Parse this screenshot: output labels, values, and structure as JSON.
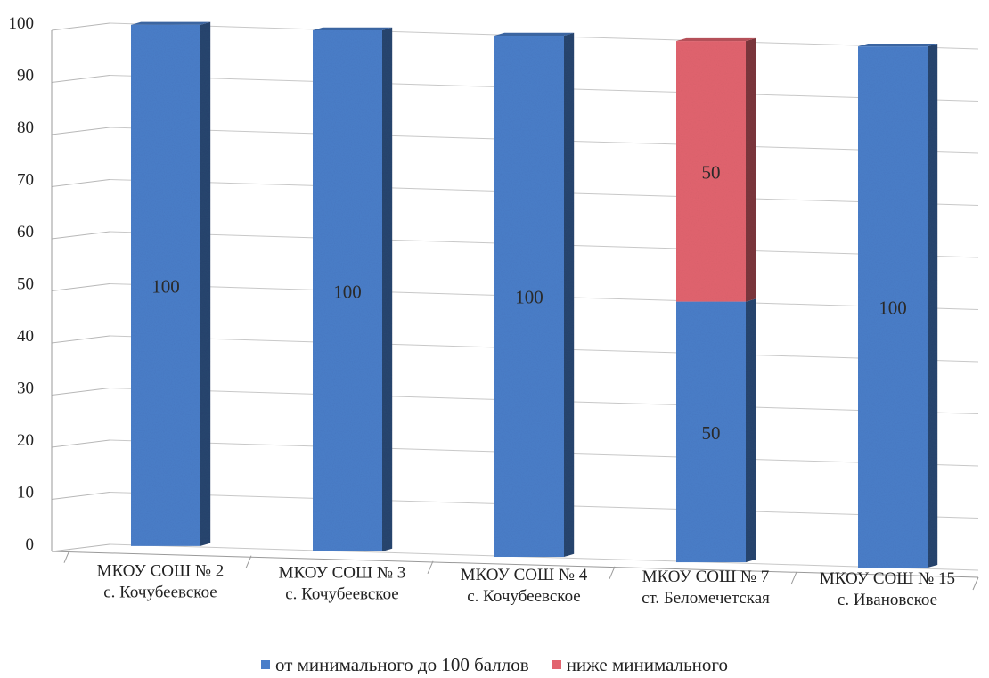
{
  "chart_data": {
    "type": "bar",
    "stacked": true,
    "three_d": true,
    "categories": [
      [
        "МКОУ СОШ № 2",
        "с. Кочубеевское"
      ],
      [
        "МКОУ СОШ № 3",
        "с. Кочубеевское"
      ],
      [
        "МКОУ СОШ № 4",
        "с. Кочубеевское"
      ],
      [
        "МКОУ СОШ № 7",
        "ст. Беломечетская"
      ],
      [
        "МКОУ СОШ № 15",
        "с. Ивановское"
      ]
    ],
    "series": [
      {
        "name": "от минимального до 100 баллов",
        "color": "#4a7ec9",
        "values": [
          100,
          100,
          100,
          50,
          100
        ]
      },
      {
        "name": "ниже минимального",
        "color": "#e2646f",
        "values": [
          0,
          0,
          0,
          50,
          0
        ]
      }
    ],
    "ylim": [
      0,
      100
    ],
    "yticks": [
      0,
      10,
      20,
      30,
      40,
      50,
      60,
      70,
      80,
      90,
      100
    ],
    "grid": true,
    "legend_position": "bottom"
  }
}
